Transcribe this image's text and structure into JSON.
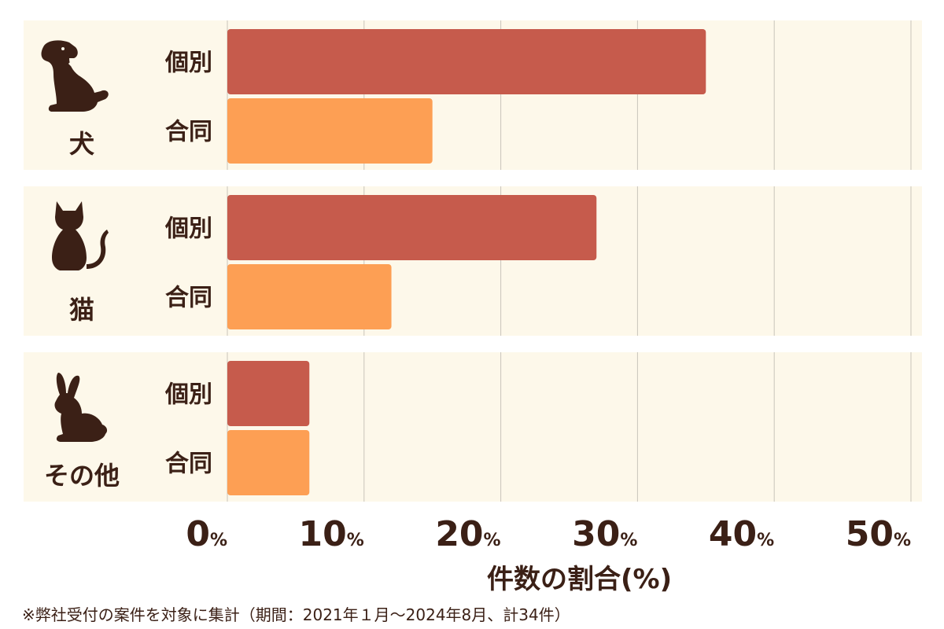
{
  "chart_data": {
    "type": "bar",
    "orientation": "horizontal",
    "xlabel": "件数の割合(%)",
    "xlim": [
      0,
      50
    ],
    "x_ticks": [
      0,
      10,
      20,
      30,
      40,
      50
    ],
    "x_tick_unit": "%",
    "grid": true,
    "groups": [
      {
        "label": "犬",
        "icon": "dog-icon"
      },
      {
        "label": "猫",
        "icon": "cat-icon"
      },
      {
        "label": "その他",
        "icon": "rabbit-icon"
      }
    ],
    "series": [
      {
        "name": "個別",
        "color": "#c65b4c",
        "values": [
          35,
          27,
          6
        ]
      },
      {
        "name": "合同",
        "color": "#fd9f54",
        "values": [
          15,
          12,
          6
        ]
      }
    ]
  },
  "footnote": "※弊社受付の案件を対象に集計（期間：2021年１月～2024年8月、計34件）"
}
